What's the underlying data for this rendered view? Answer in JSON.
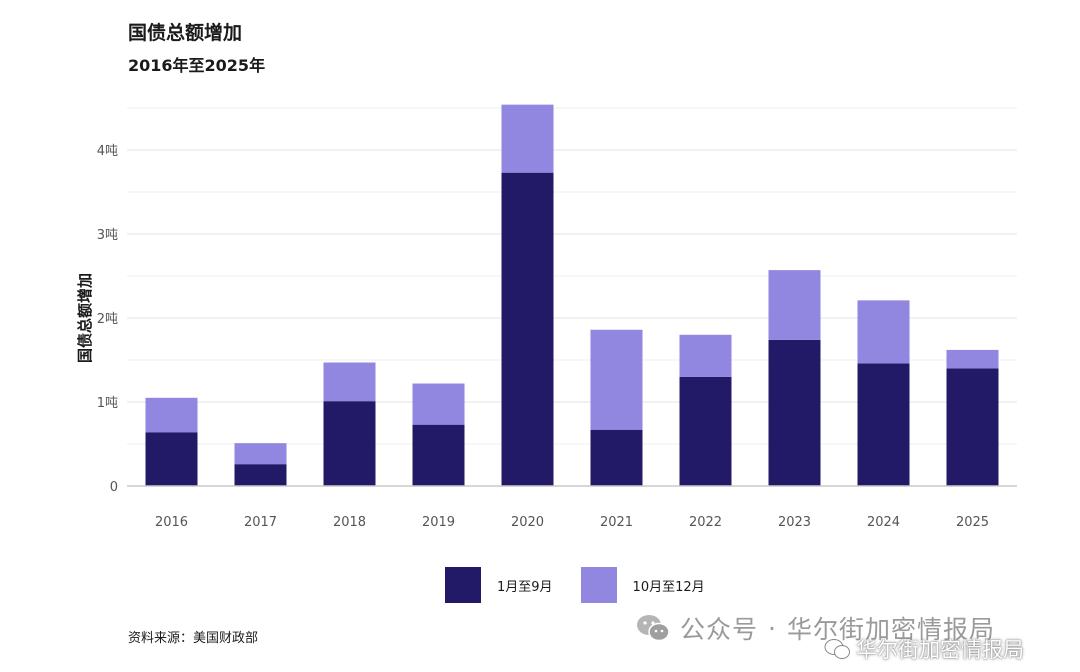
{
  "header": {
    "title": "国债总额增加",
    "subtitle": "2016年至2025年"
  },
  "chart_data": {
    "type": "bar",
    "stacked": true,
    "title": "国债总额增加",
    "subtitle": "2016年至2025年",
    "xlabel": "",
    "ylabel": "国债总额增加",
    "categories": [
      "2016",
      "2017",
      "2018",
      "2019",
      "2020",
      "2021",
      "2022",
      "2023",
      "2024",
      "2025"
    ],
    "series": [
      {
        "name": "1月至9月",
        "color": "#221a66",
        "values": [
          0.64,
          0.26,
          1.01,
          0.73,
          3.73,
          0.67,
          1.3,
          1.74,
          1.46,
          1.4
        ]
      },
      {
        "name": "10月至12月",
        "color": "#9186e0",
        "values": [
          0.41,
          0.25,
          0.46,
          0.49,
          0.81,
          1.19,
          0.5,
          0.83,
          0.75,
          0.22
        ]
      }
    ],
    "ylim": [
      0,
      4.5
    ],
    "yticks": [
      0,
      1,
      2,
      3,
      4
    ],
    "ytick_labels": [
      "0",
      "1吨",
      "2吨",
      "3吨",
      "4吨"
    ],
    "grid": true,
    "legend_position": "bottom-center"
  },
  "legend": {
    "items": [
      {
        "label": "1月至9月",
        "color": "#221a66"
      },
      {
        "label": "10月至12月",
        "color": "#9186e0"
      }
    ]
  },
  "footer": {
    "source": "资料来源：美国财政部"
  },
  "watermark": {
    "prefix": "公众号",
    "separator": "·",
    "name": "华尔街加密情报局",
    "name_small": "华尔街加密情报局"
  }
}
